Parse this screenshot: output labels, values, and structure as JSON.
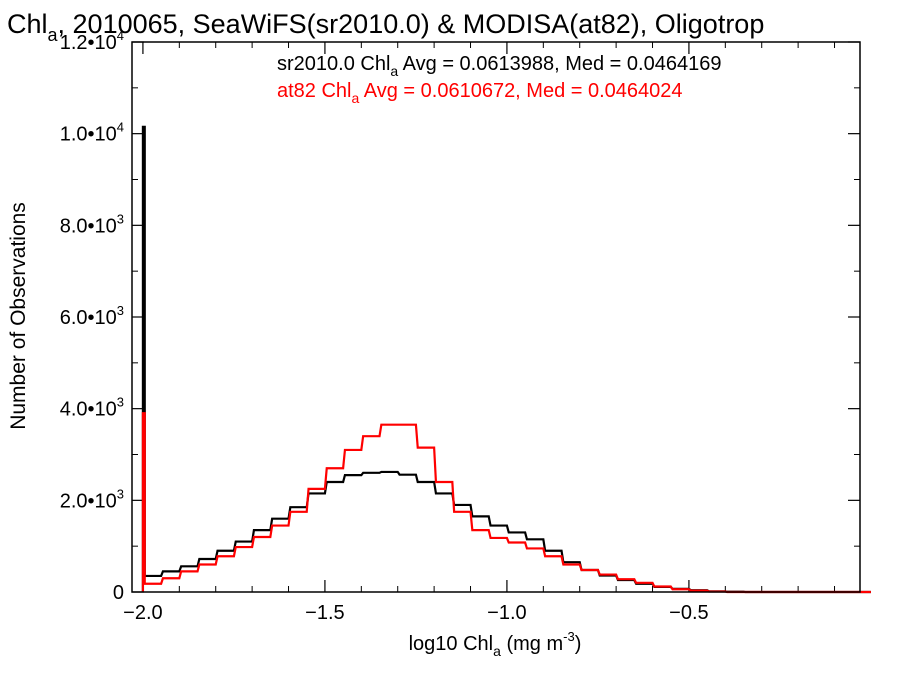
{
  "chart_data": {
    "type": "line",
    "title": {
      "pre": "Chl",
      "sub": "a",
      "post": ", 2010065, SeaWiFS(sr2010.0) & MODISA(at82), Oligotrop"
    },
    "xlabel": {
      "pre": "log10 Chl",
      "sub": "a",
      "post": " (mg m",
      "sup": "-3",
      "end": ")"
    },
    "ylabel": "Number of Observations",
    "xlim": [
      -2.03,
      -0.03
    ],
    "ylim": [
      0,
      12000
    ],
    "x_ticks": [
      {
        "value": -2.0,
        "label": "−2.0"
      },
      {
        "value": -1.5,
        "label": "−1.5"
      },
      {
        "value": -1.0,
        "label": "−1.0"
      },
      {
        "value": -0.5,
        "label": "−0.5"
      }
    ],
    "y_ticks": [
      {
        "value": 0,
        "mant": "0",
        "exp": ""
      },
      {
        "value": 2000,
        "mant": "2.0•10",
        "exp": "3"
      },
      {
        "value": 4000,
        "mant": "4.0•10",
        "exp": "3"
      },
      {
        "value": 6000,
        "mant": "6.0•10",
        "exp": "3"
      },
      {
        "value": 8000,
        "mant": "8.0•10",
        "exp": "3"
      },
      {
        "value": 10000,
        "mant": "1.0•10",
        "exp": "4"
      },
      {
        "value": 12000,
        "mant": "1.2•10",
        "exp": "4"
      }
    ],
    "annotations": [
      {
        "pre": "sr2010.0 Chl",
        "sub": "a",
        "post": " Avg = 0.0613988, Med = 0.0464169",
        "color": "#000000"
      },
      {
        "pre": "at82 Chl",
        "sub": "a",
        "post": " Avg = 0.0610672, Med = 0.0464024",
        "color": "#ff0000"
      }
    ],
    "series": [
      {
        "color": "#000000",
        "spike": {
          "x": -2.0,
          "value": 10150
        },
        "x": [
          -2.0,
          -1.95,
          -1.9,
          -1.85,
          -1.8,
          -1.75,
          -1.7,
          -1.65,
          -1.6,
          -1.55,
          -1.5,
          -1.45,
          -1.4,
          -1.35,
          -1.3,
          -1.25,
          -1.2,
          -1.15,
          -1.1,
          -1.05,
          -1.0,
          -0.95,
          -0.9,
          -0.85,
          -0.8,
          -0.75,
          -0.7,
          -0.65,
          -0.6,
          -0.55,
          -0.5,
          -0.45,
          -0.4,
          -0.35,
          -0.3,
          -0.25,
          -0.2,
          -0.15,
          -0.1,
          -0.05
        ],
        "values": [
          350,
          450,
          560,
          720,
          900,
          1100,
          1350,
          1600,
          1850,
          2150,
          2400,
          2550,
          2600,
          2620,
          2560,
          2400,
          2150,
          1900,
          1650,
          1450,
          1300,
          1150,
          900,
          650,
          480,
          360,
          260,
          180,
          110,
          70,
          40,
          15,
          5,
          0,
          0,
          0,
          0,
          0,
          0,
          0
        ]
      },
      {
        "color": "#ff0000",
        "spike": {
          "x": -2.0,
          "value": 3900
        },
        "x": [
          -2.0,
          -1.95,
          -1.9,
          -1.85,
          -1.8,
          -1.75,
          -1.7,
          -1.65,
          -1.6,
          -1.55,
          -1.5,
          -1.45,
          -1.4,
          -1.35,
          -1.3,
          -1.25,
          -1.2,
          -1.15,
          -1.1,
          -1.05,
          -1.0,
          -0.95,
          -0.9,
          -0.85,
          -0.8,
          -0.75,
          -0.7,
          -0.65,
          -0.6,
          -0.55,
          -0.5,
          -0.45,
          -0.4,
          -0.35,
          -0.3,
          -0.25,
          -0.2,
          -0.15,
          -0.1,
          -0.05
        ],
        "values": [
          180,
          300,
          450,
          600,
          780,
          980,
          1200,
          1450,
          1750,
          2250,
          2700,
          3100,
          3400,
          3650,
          3650,
          3150,
          2400,
          1750,
          1350,
          1180,
          1080,
          950,
          780,
          600,
          480,
          380,
          280,
          200,
          120,
          60,
          30,
          10,
          0,
          0,
          0,
          0,
          0,
          0,
          0,
          0
        ]
      }
    ]
  }
}
